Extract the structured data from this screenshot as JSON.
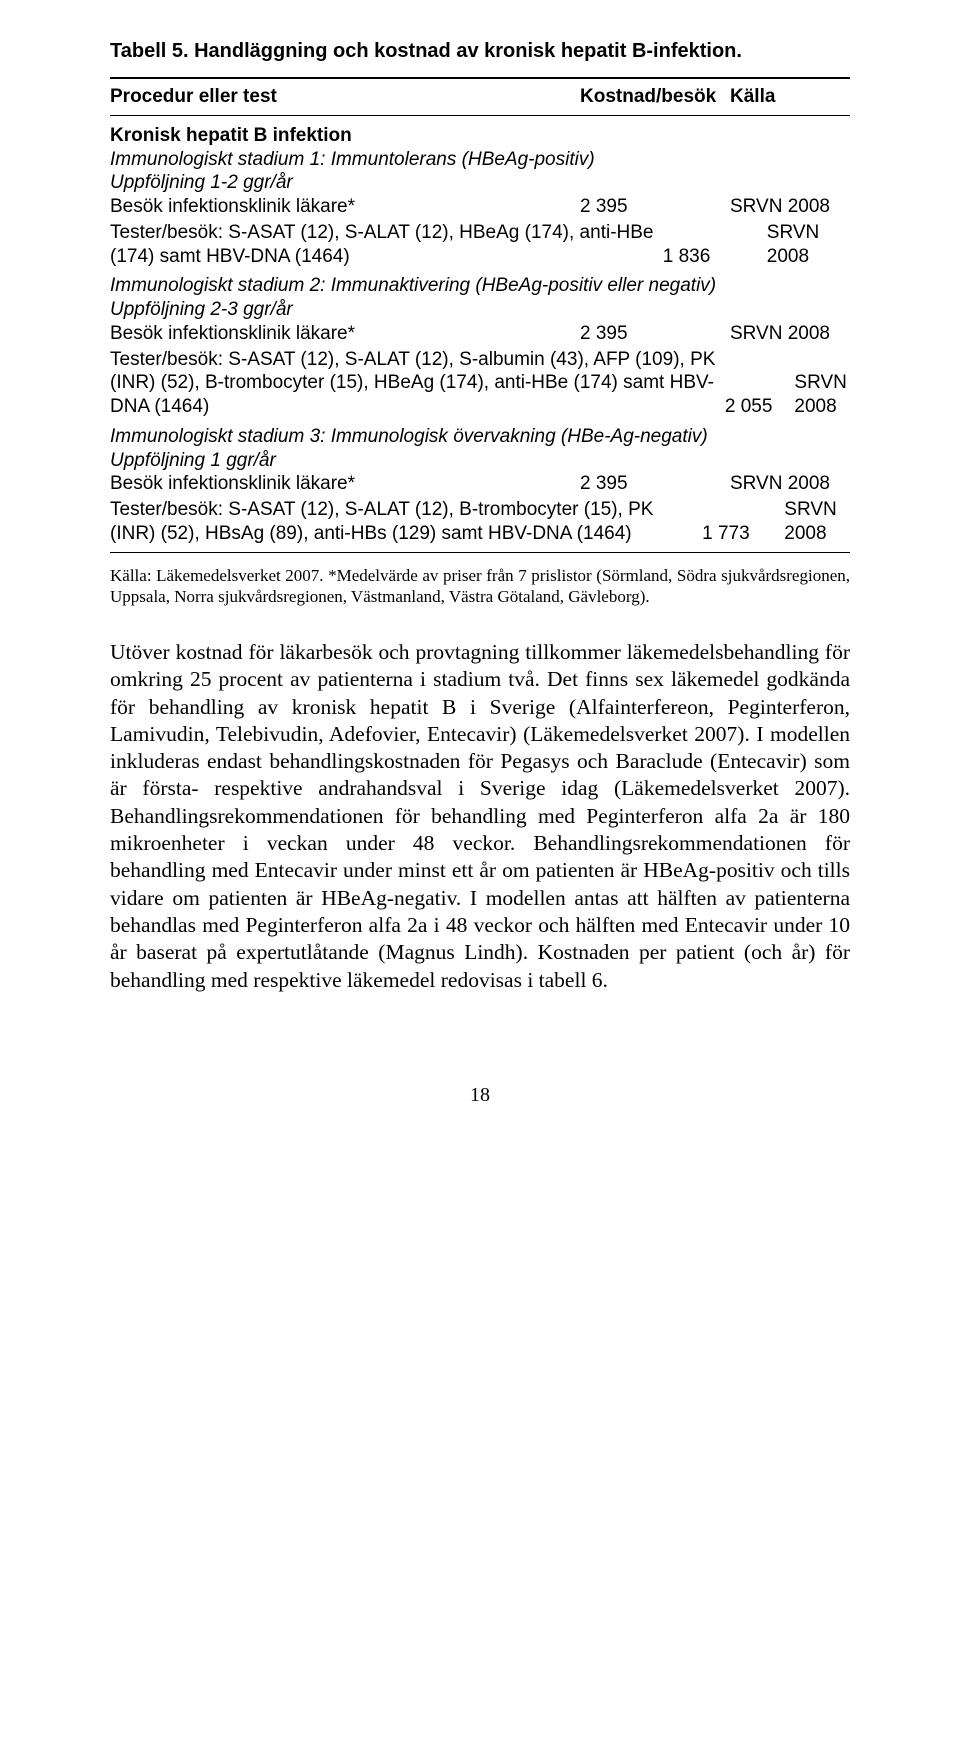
{
  "table": {
    "title": "Tabell 5. Handläggning och kostnad av kronisk hepatit B-infektion.",
    "columns": {
      "c1": "Procedur eller test",
      "c2": "Kostnad/besök",
      "c3": "Källa"
    },
    "section": "Kronisk hepatit B infektion",
    "stage1_heading": "Immunologiskt stadium 1: Immuntolerans (HBeAg-positiv)",
    "stage1_followup": "Uppföljning 1-2 ggr/år",
    "stage1_r1": {
      "label": "Besök infektionsklinik läkare*",
      "cost": "2 395",
      "source": "SRVN 2008"
    },
    "stage1_r2": {
      "label": "Tester/besök: S-ASAT (12), S-ALAT (12), HBeAg (174), anti-HBe (174) samt HBV-DNA (1464)",
      "cost": "1 836",
      "source": "SRVN 2008"
    },
    "stage2_heading": "Immunologiskt stadium 2: Immunaktivering (HBeAg-positiv eller negativ)",
    "stage2_followup": "Uppföljning 2-3 ggr/år",
    "stage2_r1": {
      "label": "Besök infektionsklinik läkare*",
      "cost": "2 395",
      "source": "SRVN 2008"
    },
    "stage2_r2": {
      "label": "Tester/besök: S-ASAT (12), S-ALAT (12), S-albumin (43), AFP (109), PK (INR) (52), B-trombocyter (15), HBeAg (174), anti-HBe (174) samt HBV-DNA (1464)",
      "cost": "2 055",
      "source": "SRVN 2008"
    },
    "stage3_heading": "Immunologiskt stadium 3: Immunologisk övervakning (HBe-Ag-negativ)",
    "stage3_followup": "Uppföljning 1 ggr/år",
    "stage3_r1": {
      "label": "Besök infektionsklinik läkare*",
      "cost": "2 395",
      "source": "SRVN 2008"
    },
    "stage3_r2": {
      "label": "Tester/besök: S-ASAT (12), S-ALAT (12), B-trombocyter (15), PK (INR) (52), HBsAg (89), anti-HBs (129) samt HBV-DNA (1464)",
      "cost": "1 773",
      "source": "SRVN 2008"
    }
  },
  "footnote": "Källa: Läkemedelsverket 2007. *Medelvärde av priser från 7 prislistor (Sörmland, Södra sjukvårdsregionen, Uppsala, Norra sjukvårdsregionen, Västmanland, Västra Götaland, Gävleborg).",
  "body": "Utöver kostnad för läkarbesök och provtagning tillkommer läkemedelsbehandling för omkring 25 procent av patienterna i stadium två. Det finns sex läkemedel godkända för behandling av kronisk hepatit B i Sverige (Alfainterfereon, Peginterferon, Lamivudin, Telebivudin, Adefovier, Entecavir) (Läkemedelsverket 2007). I modellen inkluderas endast behandlingskostnaden för Pegasys och Baraclude (Entecavir) som är första- respektive andrahandsval i Sverige idag (Läkemedelsverket 2007). Behandlingsrekommendationen för behandling med Peginterferon alfa 2a är 180 mikroenheter i veckan under 48 veckor. Behandlingsrekommendationen för behandling med Entecavir under minst ett år om patienten är HBeAg-positiv och tills vidare om patienten är HBeAg-negativ. I modellen antas att hälften av patienterna behandlas med Peginterferon alfa 2a i 48 veckor och hälften med Entecavir under 10 år baserat på expertutlåtande (Magnus Lindh). Kostnaden per patient (och år) för behandling med respektive läkemedel redovisas i tabell 6.",
  "page_number": "18"
}
